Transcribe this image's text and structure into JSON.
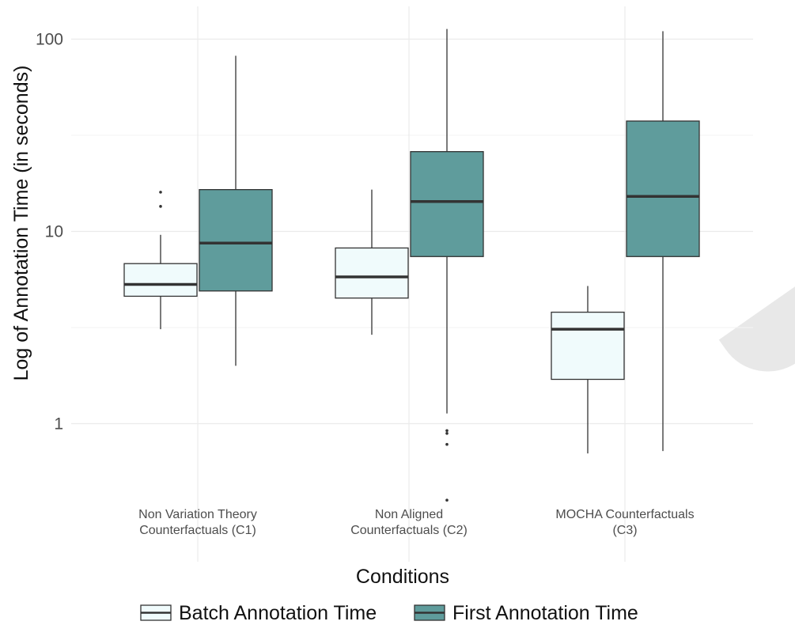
{
  "chart_data": {
    "type": "box",
    "xlabel": "Conditions",
    "ylabel": "Log of Annotation Time (in seconds)",
    "y_scale": "log10",
    "y_ticks": [
      1,
      10,
      100
    ],
    "y_tick_labels": [
      "1",
      "10",
      "100"
    ],
    "ylim": [
      0.38,
      170
    ],
    "grid": true,
    "legend_position": "bottom",
    "categories": [
      [
        "Non Variation Theory",
        "Counterfactuals (C1)"
      ],
      [
        "Non Aligned",
        "Counterfactuals (C2)"
      ],
      [
        "MOCHA Counterfactuals",
        "(C3)"
      ]
    ],
    "series": [
      {
        "name": "Batch Annotation Time",
        "color": "#f0fbfc",
        "boxes": [
          {
            "whisker_low": 3.1,
            "q1": 4.6,
            "median": 5.3,
            "q3": 6.8,
            "whisker_high": 9.6,
            "outliers": [
              13.5,
              16
            ]
          },
          {
            "whisker_low": 2.9,
            "q1": 4.5,
            "median": 5.8,
            "q3": 8.2,
            "whisker_high": 16.5,
            "outliers": []
          },
          {
            "whisker_low": 0.7,
            "q1": 1.7,
            "median": 3.1,
            "q3": 3.8,
            "whisker_high": 5.2,
            "outliers": []
          }
        ]
      },
      {
        "name": "First Annotation Time",
        "color": "#5f9c9c",
        "boxes": [
          {
            "whisker_low": 2.0,
            "q1": 4.9,
            "median": 8.7,
            "q3": 16.5,
            "whisker_high": 82,
            "outliers": []
          },
          {
            "whisker_low": 1.13,
            "q1": 7.4,
            "median": 14.3,
            "q3": 26,
            "whisker_high": 113,
            "outliers": [
              0.92,
              0.89,
              0.78,
              0.4
            ]
          },
          {
            "whisker_low": 0.72,
            "q1": 7.4,
            "median": 15.2,
            "q3": 37.5,
            "whisker_high": 110,
            "outliers": []
          }
        ]
      }
    ]
  }
}
